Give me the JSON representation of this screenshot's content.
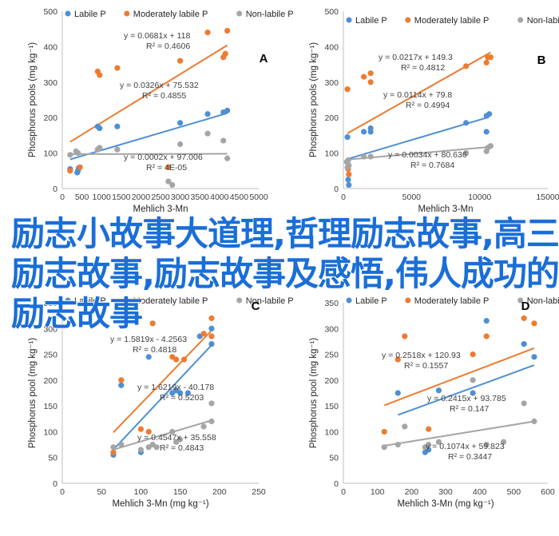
{
  "overlay_title": "励志小故事大道理,哲理励志故事,高三励志故事,励志故事及感悟,伟人成功的励志故事",
  "colors": {
    "labile": "#4e8fd4",
    "moderate": "#ee7b30",
    "nonlabile": "#a5a5a5"
  },
  "chart_data": [
    {
      "type": "scatter",
      "panel": "A",
      "xlabel": "Mehlich 3-Mn",
      "ylabel": "Phosphorus pools (mg kg⁻¹)",
      "xlim": [
        0,
        5000
      ],
      "ylim": [
        0,
        500
      ],
      "xticks": [
        0,
        500,
        1000,
        1500,
        2000,
        2500,
        3000,
        3500,
        4000,
        4500,
        5000
      ],
      "yticks": [
        0,
        100,
        200,
        300,
        400,
        500
      ],
      "series": [
        {
          "name": "Labile P",
          "color": "#4e8fd4",
          "x": [
            200,
            380,
            400,
            420,
            900,
            950,
            1400,
            3000,
            3700,
            4100,
            4200
          ],
          "y": [
            55,
            45,
            50,
            58,
            175,
            170,
            175,
            185,
            210,
            215,
            220
          ],
          "trend": [
            0.0326,
            75.532
          ],
          "equation": "y = 0.0326x + 75.532",
          "r2": "R² = 0.4855"
        },
        {
          "name": "Moderately labile P",
          "color": "#ee7b30",
          "x": [
            200,
            450,
            900,
            950,
            1400,
            2700,
            3000,
            3700,
            4100,
            4150,
            4200
          ],
          "y": [
            50,
            60,
            330,
            320,
            340,
            60,
            360,
            440,
            370,
            380,
            445
          ],
          "trend": [
            0.0681,
            118
          ],
          "equation": "y = 0.0681x + 118",
          "r2": "R² = 0.4606"
        },
        {
          "name": "Non-labile P",
          "color": "#a5a5a5",
          "x": [
            200,
            350,
            400,
            900,
            950,
            1400,
            2700,
            2800,
            3000,
            3700,
            4100,
            4200
          ],
          "y": [
            95,
            105,
            100,
            110,
            115,
            110,
            20,
            10,
            125,
            155,
            135,
            85
          ],
          "trend": [
            0.0002,
            97.006
          ],
          "equation": "y = 0.0002x + 97.006",
          "r2": "R² = 4E-05"
        }
      ]
    },
    {
      "type": "scatter",
      "panel": "B",
      "xlabel": "Mehlich 3-Mn",
      "ylabel": "Phosphorus pools (mg kg⁻¹)",
      "xlim": [
        0,
        15000
      ],
      "ylim": [
        0,
        500
      ],
      "xticks": [
        0,
        5000,
        10000,
        15000
      ],
      "yticks": [
        0,
        100,
        200,
        300,
        400,
        500
      ],
      "series": [
        {
          "name": "Labile P",
          "color": "#4e8fd4",
          "x": [
            300,
            350,
            400,
            1500,
            2000,
            2000,
            9000,
            10500,
            10500,
            10700
          ],
          "y": [
            145,
            25,
            10,
            160,
            160,
            170,
            185,
            160,
            205,
            210
          ],
          "trend": [
            0.0114,
            79.8
          ],
          "equation": "y = 0.0114x + 79.8",
          "r2": "R² = 0.4994"
        },
        {
          "name": "Moderately labile P",
          "color": "#ee7b30",
          "x": [
            300,
            350,
            400,
            1500,
            2000,
            2000,
            9000,
            10500,
            10600,
            10800
          ],
          "y": [
            280,
            55,
            40,
            315,
            300,
            325,
            345,
            355,
            370,
            370
          ],
          "trend": [
            0.0217,
            149.3
          ],
          "equation": "y = 0.0217x + 149.3",
          "r2": "R² = 0.4812"
        },
        {
          "name": "Non-labile P",
          "color": "#a5a5a5",
          "x": [
            250,
            300,
            350,
            400,
            1500,
            2000,
            9000,
            10500,
            10600,
            10800
          ],
          "y": [
            75,
            60,
            80,
            65,
            90,
            90,
            100,
            105,
            115,
            120
          ],
          "trend": [
            0.0034,
            80.636
          ],
          "equation": "y = 0.0034x + 80.636",
          "r2": "R² = 0.7684"
        }
      ]
    },
    {
      "type": "scatter",
      "panel": "C",
      "xlabel": "Mehlich 3-Mn (mg kg⁻¹)",
      "ylabel": "Phosphorus pool (mg kg⁻¹)",
      "xlim": [
        0,
        250
      ],
      "ylim": [
        0,
        350
      ],
      "xticks": [
        0,
        50,
        100,
        150,
        200,
        250
      ],
      "yticks": [
        0,
        50,
        100,
        150,
        200,
        250,
        300,
        350
      ],
      "series": [
        {
          "name": "Labile P",
          "color": "#4e8fd4",
          "x": [
            65,
            75,
            100,
            110,
            140,
            145,
            150,
            160,
            175,
            190,
            190
          ],
          "y": [
            55,
            190,
            60,
            245,
            175,
            180,
            175,
            175,
            285,
            270,
            300
          ],
          "trend": [
            1.6219,
            -40.178
          ],
          "equation": "y = 1.6219x - 40.178",
          "r2": "R² = 0.5203"
        },
        {
          "name": "Moderately labile P",
          "color": "#ee7b30",
          "x": [
            65,
            75,
            100,
            110,
            115,
            140,
            145,
            155,
            180,
            190,
            190
          ],
          "y": [
            60,
            200,
            105,
            100,
            310,
            245,
            240,
            240,
            290,
            320,
            285
          ],
          "trend": [
            1.5819,
            -4.2563
          ],
          "equation": "y = 1.5819x - 4.2563",
          "r2": "R² = 0.4818"
        },
        {
          "name": "Non-labile P",
          "color": "#a5a5a5",
          "x": [
            65,
            75,
            100,
            110,
            115,
            120,
            140,
            145,
            150,
            180,
            190,
            190
          ],
          "y": [
            70,
            75,
            65,
            70,
            75,
            70,
            100,
            80,
            85,
            110,
            155,
            120
          ],
          "trend": [
            0.4547,
            35.558
          ],
          "equation": "y = 0.4547x + 35.558",
          "r2": "R² = 0.4843"
        }
      ]
    },
    {
      "type": "scatter",
      "panel": "D",
      "xlabel": "Mehlich 3-Mn (mg kg⁻¹)",
      "ylabel": "Phosphorus pool (mg kg⁻¹)",
      "xlim": [
        0,
        600
      ],
      "ylim": [
        0,
        350
      ],
      "xticks": [
        0,
        100,
        200,
        300,
        400,
        500,
        600
      ],
      "yticks": [
        0,
        50,
        100,
        150,
        200,
        250,
        300,
        350
      ],
      "series": [
        {
          "name": "Labile P",
          "color": "#4e8fd4",
          "x": [
            160,
            240,
            250,
            280,
            380,
            420,
            530,
            560
          ],
          "y": [
            175,
            60,
            65,
            180,
            175,
            315,
            270,
            245
          ],
          "trend": [
            0.2415,
            93.785
          ],
          "equation": "y = 0.2415x + 93.785",
          "r2": "R² = 0.147"
        },
        {
          "name": "Moderately labile P",
          "color": "#ee7b30",
          "x": [
            120,
            160,
            180,
            250,
            380,
            420,
            530,
            560
          ],
          "y": [
            100,
            240,
            285,
            105,
            250,
            285,
            320,
            310
          ],
          "trend": [
            0.2518,
            120.93
          ],
          "equation": "y = 0.2518x + 120.93",
          "r2": "R² = 0.1557"
        },
        {
          "name": "Non-labile P",
          "color": "#a5a5a5",
          "x": [
            120,
            160,
            180,
            240,
            250,
            280,
            380,
            420,
            470,
            530,
            560
          ],
          "y": [
            70,
            75,
            110,
            70,
            75,
            80,
            200,
            75,
            80,
            155,
            120
          ],
          "trend": [
            0.1074,
            59.823
          ],
          "equation": "y = 0.1074x + 59.823",
          "r2": "R² = 0.3447"
        }
      ]
    }
  ]
}
